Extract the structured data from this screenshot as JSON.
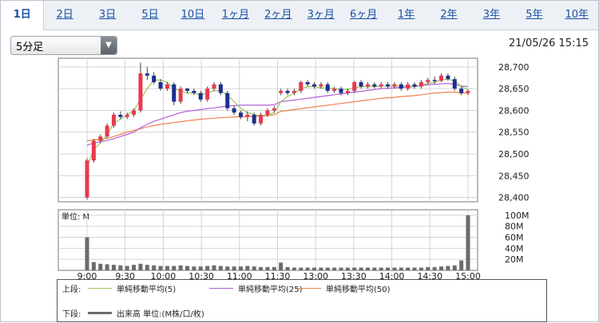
{
  "tabs": [
    "1日",
    "2日",
    "3日",
    "5日",
    "10日",
    "1ヶ月",
    "2ヶ月",
    "3ヶ月",
    "6ヶ月",
    "1年",
    "2年",
    "3年",
    "5年",
    "10年"
  ],
  "active_tab": "1日",
  "interval_select": {
    "value": "5分足"
  },
  "datetime": "21/05/26 15:15",
  "colors": {
    "up": "#e8394f",
    "down": "#1b2f8f",
    "ma5": "#9bc35a",
    "ma25": "#b060d8",
    "ma50": "#f08050",
    "volume": "#6b6b6b"
  },
  "chart_data": {
    "type": "candlestick",
    "price_axis": {
      "ticks": [
        "28,700",
        "28,650",
        "28,600",
        "28,550",
        "28,500",
        "28,450",
        "28,400"
      ],
      "ylim": [
        28390,
        28720
      ]
    },
    "volume_axis": {
      "unit_label": "単位: M",
      "ticks": [
        "100M",
        "80M",
        "60M",
        "40M",
        "20M"
      ],
      "ylim": [
        0,
        110
      ]
    },
    "time_ticks": [
      "9:00",
      "9:30",
      "10:00",
      "10:30",
      "11:00",
      "11:30",
      "13:00",
      "13:30",
      "14:00",
      "14:30",
      "15:00"
    ],
    "candles": [
      [
        28400,
        28485,
        28395,
        28490
      ],
      [
        28485,
        28530,
        28480,
        28535
      ],
      [
        28530,
        28540,
        28525,
        28545
      ],
      [
        28540,
        28565,
        28535,
        28570
      ],
      [
        28565,
        28590,
        28560,
        28595
      ],
      [
        28590,
        28585,
        28580,
        28598
      ],
      [
        28585,
        28590,
        28580,
        28595
      ],
      [
        28590,
        28600,
        28585,
        28605
      ],
      [
        28600,
        28685,
        28595,
        28710
      ],
      [
        28685,
        28680,
        28670,
        28700
      ],
      [
        28680,
        28665,
        28660,
        28688
      ],
      [
        28665,
        28650,
        28645,
        28672
      ],
      [
        28650,
        28660,
        28645,
        28665
      ],
      [
        28660,
        28620,
        28612,
        28665
      ],
      [
        28620,
        28650,
        28615,
        28655
      ],
      [
        28650,
        28645,
        28640,
        28652
      ],
      [
        28645,
        28640,
        28635,
        28650
      ],
      [
        28640,
        28625,
        28620,
        28645
      ],
      [
        28625,
        28650,
        28620,
        28655
      ],
      [
        28650,
        28660,
        28645,
        28665
      ],
      [
        28660,
        28640,
        28635,
        28665
      ],
      [
        28640,
        28605,
        28600,
        28645
      ],
      [
        28605,
        28595,
        28590,
        28610
      ],
      [
        28595,
        28585,
        28580,
        28600
      ],
      [
        28585,
        28590,
        28575,
        28598
      ],
      [
        28590,
        28570,
        28565,
        28595
      ],
      [
        28570,
        28590,
        28565,
        28595
      ],
      [
        28590,
        28600,
        28585,
        28605
      ],
      [
        28600,
        28605,
        28595,
        28610
      ],
      [
        28640,
        28645,
        28635,
        28650
      ],
      [
        28645,
        28640,
        28635,
        28650
      ],
      [
        28640,
        28645,
        28635,
        28650
      ],
      [
        28645,
        28665,
        28640,
        28668
      ],
      [
        28665,
        28660,
        28655,
        28670
      ],
      [
        28660,
        28655,
        28650,
        28665
      ],
      [
        28655,
        28660,
        28650,
        28665
      ],
      [
        28660,
        28645,
        28640,
        28665
      ],
      [
        28645,
        28650,
        28640,
        28655
      ],
      [
        28650,
        28640,
        28635,
        28655
      ],
      [
        28640,
        28645,
        28635,
        28650
      ],
      [
        28645,
        28665,
        28640,
        28668
      ],
      [
        28665,
        28655,
        28650,
        28670
      ],
      [
        28655,
        28660,
        28650,
        28665
      ],
      [
        28660,
        28655,
        28650,
        28665
      ],
      [
        28655,
        28660,
        28650,
        28665
      ],
      [
        28660,
        28655,
        28650,
        28665
      ],
      [
        28655,
        28660,
        28650,
        28665
      ],
      [
        28660,
        28650,
        28645,
        28665
      ],
      [
        28650,
        28660,
        28645,
        28665
      ],
      [
        28660,
        28655,
        28650,
        28665
      ],
      [
        28655,
        28665,
        28650,
        28670
      ],
      [
        28665,
        28670,
        28660,
        28675
      ],
      [
        28670,
        28668,
        28660,
        28678
      ],
      [
        28668,
        28680,
        28665,
        28685
      ],
      [
        28680,
        28672,
        28668,
        28685
      ],
      [
        28672,
        28650,
        28645,
        28678
      ],
      [
        28650,
        28640,
        28635,
        28655
      ],
      [
        28640,
        28645,
        28635,
        28648
      ]
    ],
    "volume": [
      60,
      15,
      12,
      11,
      10,
      9,
      8,
      10,
      12,
      10,
      9,
      8,
      8,
      8,
      9,
      8,
      7,
      7,
      8,
      9,
      8,
      7,
      7,
      7,
      8,
      7,
      6,
      6,
      6,
      14,
      6,
      5,
      5,
      5,
      5,
      5,
      5,
      5,
      5,
      5,
      5,
      5,
      5,
      5,
      5,
      5,
      5,
      5,
      5,
      5,
      5,
      6,
      6,
      7,
      8,
      9,
      18,
      100
    ],
    "ma5": [
      28470,
      28510,
      28525,
      28545,
      28570,
      28580,
      28590,
      28600,
      28625,
      28650,
      28670,
      28670,
      28665,
      28650,
      28645,
      28640,
      28640,
      28635,
      28640,
      28645,
      28645,
      28635,
      28620,
      28605,
      28595,
      28590,
      28588,
      28590,
      28595,
      28620,
      28632,
      28640,
      28650,
      28655,
      28655,
      28652,
      28652,
      28650,
      28648,
      28648,
      28652,
      28655,
      28655,
      28655,
      28656,
      28656,
      28656,
      28656,
      28655,
      28656,
      28658,
      28662,
      28665,
      28670,
      28672,
      28668,
      28655,
      28648
    ],
    "ma25": [
      28520,
      28525,
      28528,
      28531,
      28535,
      28540,
      28545,
      28550,
      28560,
      28568,
      28575,
      28580,
      28585,
      28590,
      28595,
      28598,
      28600,
      28602,
      28604,
      28606,
      28608,
      28610,
      28611,
      28612,
      28612,
      28612,
      28612,
      28612,
      28613,
      28620,
      28622,
      28624,
      28626,
      28628,
      28630,
      28632,
      28634,
      28636,
      28638,
      28640,
      28642,
      28644,
      28646,
      28648,
      28650,
      28651,
      28652,
      28653,
      28654,
      28655,
      28657,
      28659,
      28660,
      28661,
      28662,
      28660,
      28656,
      28655
    ],
    "ma50": [
      28530,
      28532,
      28534,
      28536,
      28540,
      28545,
      28550,
      28554,
      28558,
      28562,
      28565,
      28568,
      28570,
      28572,
      28574,
      28576,
      28578,
      28580,
      28581,
      28582,
      28583,
      28584,
      28585,
      28585,
      28586,
      28586,
      28587,
      28588,
      28590,
      28598,
      28600,
      28602,
      28604,
      28606,
      28608,
      28610,
      28612,
      28614,
      28616,
      28618,
      28620,
      28622,
      28624,
      28626,
      28628,
      28629,
      28630,
      28632,
      28633,
      28634,
      28636,
      28638,
      28640,
      28641,
      28642,
      28642,
      28640,
      28640
    ]
  },
  "legend": {
    "upper_label": "上段:",
    "lower_label": "下段:",
    "ma5_label": "単純移動平均(5)",
    "ma25_label": "単純移動平均(25)",
    "ma50_label": "単純移動平均(50)",
    "volume_label": "出来高 単位:(M株/口/枚)"
  }
}
